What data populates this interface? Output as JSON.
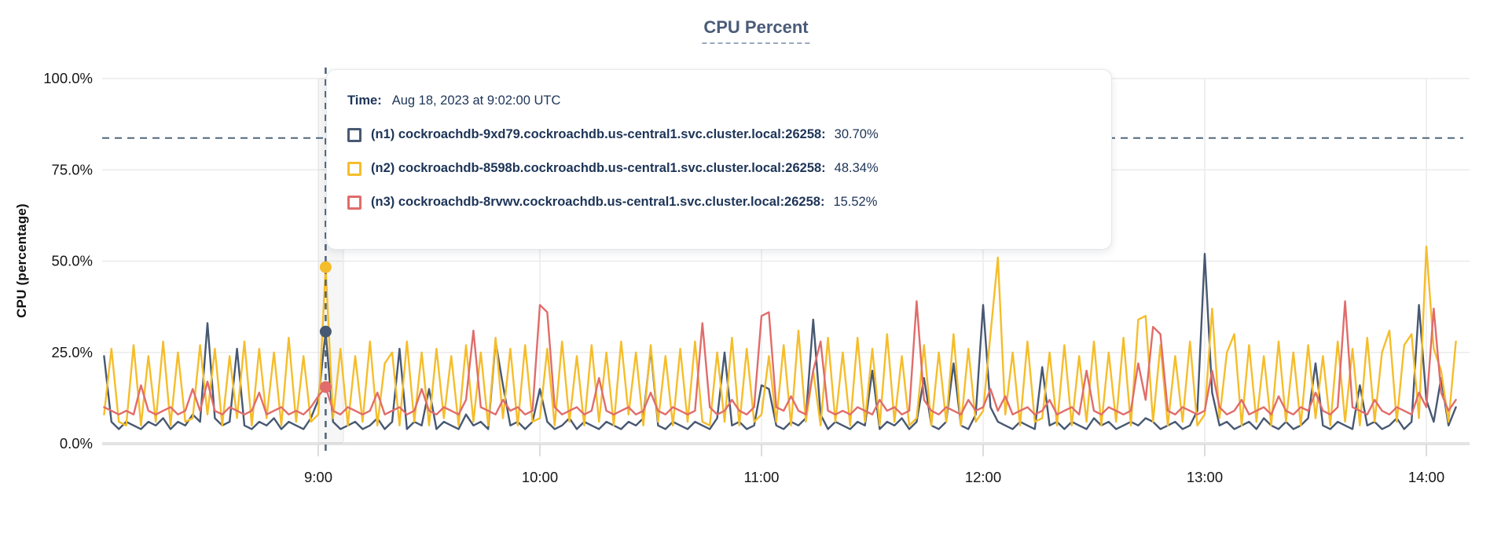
{
  "chart_data": {
    "type": "line",
    "title": "CPU Percent",
    "ylabel": "CPU (percentage)",
    "ylim": [
      0,
      100
    ],
    "grid": true,
    "y_tick_labels": [
      "100.0%",
      "75.0%",
      "50.0%",
      "25.0%",
      "0.0%"
    ],
    "y_tick_values": [
      100,
      75,
      50,
      25,
      0
    ],
    "x_tick_labels": [
      "9:00",
      "10:00",
      "11:00",
      "12:00",
      "13:00",
      "14:00"
    ],
    "x_tick_minutes": [
      540,
      600,
      660,
      720,
      780,
      840
    ],
    "x_start_minutes": 482,
    "x_step_minutes": 2,
    "dashed_hline_value": 83.7,
    "crosshair_color": "#51677a",
    "hover": {
      "index": 30,
      "time": "Aug 18, 2023 at 9:02:00 UTC",
      "values": {
        "n1": 30.7,
        "n2": 48.34,
        "n3": 15.52
      }
    },
    "series": [
      {
        "id": "n1",
        "name": "(n1) cockroachdb-9xd79.cockroachdb.us-central1.svc.cluster.local:26258",
        "color": "#475872",
        "values": [
          24,
          6,
          4,
          6,
          5,
          4,
          6,
          5,
          7,
          4,
          6,
          5,
          8,
          6,
          33,
          7,
          5,
          6,
          26,
          5,
          4,
          6,
          5,
          7,
          4,
          6,
          5,
          4,
          7,
          12,
          30.7,
          6,
          4,
          5,
          6,
          4,
          5,
          7,
          4,
          6,
          26,
          4,
          6,
          5,
          15,
          4,
          6,
          5,
          4,
          8,
          5,
          6,
          4,
          28,
          16,
          5,
          6,
          4,
          6,
          15,
          6,
          4,
          5,
          7,
          4,
          6,
          5,
          4,
          6,
          5,
          4,
          6,
          5,
          7,
          26,
          5,
          4,
          6,
          5,
          4,
          6,
          5,
          4,
          7,
          25,
          5,
          6,
          4,
          5,
          16,
          15,
          5,
          4,
          6,
          5,
          7,
          34,
          8,
          4,
          6,
          5,
          4,
          6,
          5,
          20,
          4,
          6,
          5,
          7,
          4,
          6,
          18,
          5,
          4,
          6,
          22,
          5,
          4,
          8,
          38,
          10,
          6,
          5,
          4,
          6,
          5,
          4,
          21,
          5,
          6,
          4,
          6,
          5,
          4,
          7,
          5,
          6,
          4,
          5,
          6,
          5,
          7,
          6,
          4,
          5,
          6,
          4,
          5,
          9,
          52,
          14,
          5,
          6,
          4,
          5,
          6,
          4,
          7,
          5,
          4,
          6,
          4,
          5,
          7,
          22,
          5,
          4,
          6,
          5,
          4,
          16,
          5,
          6,
          4,
          5,
          7,
          4,
          6,
          38,
          12,
          6,
          18,
          5,
          10
        ]
      },
      {
        "id": "n2",
        "name": "(n2) cockroachdb-8598b.cockroachdb.us-central1.svc.cluster.local:26258",
        "color": "#f5bd2b",
        "values": [
          8,
          26,
          6,
          5,
          27,
          5,
          24,
          6,
          28,
          5,
          25,
          6,
          7,
          27,
          8,
          26,
          5,
          24,
          7,
          28,
          5,
          26,
          7,
          25,
          5,
          29,
          6,
          24,
          6,
          8,
          48.34,
          7,
          26,
          5,
          24,
          6,
          28,
          5,
          22,
          25,
          5,
          28,
          6,
          25,
          5,
          26,
          7,
          24,
          5,
          27,
          6,
          25,
          5,
          29,
          7,
          26,
          5,
          27,
          6,
          7,
          26,
          5,
          28,
          6,
          24,
          5,
          27,
          6,
          25,
          5,
          28,
          8,
          25,
          5,
          27,
          6,
          24,
          5,
          26,
          6,
          28,
          6,
          5,
          25,
          6,
          29,
          5,
          26,
          6,
          8,
          24,
          6,
          27,
          5,
          31,
          6,
          20,
          5,
          29,
          6,
          25,
          5,
          29,
          6,
          26,
          5,
          30,
          6,
          24,
          5,
          7,
          27,
          5,
          25,
          6,
          30,
          5,
          26,
          6,
          9,
          30,
          51,
          8,
          25,
          5,
          28,
          6,
          7,
          25,
          5,
          27,
          5,
          24,
          6,
          28,
          5,
          25,
          6,
          29,
          5,
          34,
          35,
          6,
          27,
          5,
          24,
          6,
          28,
          5,
          8,
          37,
          7,
          25,
          30,
          5,
          27,
          6,
          24,
          5,
          28,
          6,
          25,
          5,
          27,
          7,
          24,
          5,
          28,
          6,
          26,
          5,
          29,
          6,
          25,
          31,
          6,
          27,
          30,
          7,
          54,
          26,
          20,
          6,
          28
        ]
      },
      {
        "id": "n3",
        "name": "(n3) cockroachdb-8rvwv.cockroachdb.us-central1.svc.cluster.local:26258",
        "color": "#e06c6b",
        "values": [
          10,
          9,
          8,
          9,
          8,
          16,
          9,
          8,
          9,
          10,
          8,
          9,
          15,
          9,
          17,
          9,
          8,
          10,
          9,
          8,
          9,
          14,
          8,
          9,
          10,
          8,
          9,
          8,
          10,
          13,
          15.52,
          9,
          8,
          10,
          9,
          8,
          9,
          14,
          8,
          9,
          10,
          8,
          9,
          15,
          9,
          8,
          10,
          9,
          8,
          12,
          31,
          10,
          9,
          8,
          12,
          9,
          10,
          8,
          9,
          38,
          36,
          10,
          8,
          9,
          10,
          8,
          9,
          18,
          9,
          8,
          9,
          10,
          8,
          9,
          14,
          9,
          8,
          10,
          9,
          8,
          9,
          33,
          10,
          8,
          9,
          12,
          9,
          8,
          10,
          35,
          36,
          10,
          9,
          13,
          9,
          8,
          20,
          28,
          9,
          8,
          9,
          8,
          10,
          9,
          8,
          12,
          9,
          10,
          8,
          9,
          39,
          12,
          9,
          8,
          10,
          9,
          8,
          12,
          9,
          10,
          15,
          9,
          13,
          8,
          9,
          10,
          8,
          9,
          12,
          8,
          9,
          10,
          8,
          20,
          9,
          8,
          10,
          9,
          8,
          9,
          22,
          12,
          32,
          30,
          9,
          8,
          10,
          9,
          8,
          9,
          20,
          10,
          8,
          9,
          12,
          8,
          9,
          10,
          8,
          13,
          9,
          8,
          10,
          9,
          14,
          9,
          8,
          10,
          39,
          10,
          9,
          8,
          12,
          9,
          8,
          10,
          9,
          8,
          14,
          10,
          37,
          14,
          9,
          12
        ]
      }
    ]
  },
  "tooltip": {
    "time_label": "Time:",
    "time_value": "Aug 18, 2023 at 9:02:00 UTC",
    "rows": [
      {
        "id": "n1",
        "label": "(n1) cockroachdb-9xd79.cockroachdb.us-central1.svc.cluster.local:26258:",
        "value": "30.70%",
        "color": "#475872"
      },
      {
        "id": "n2",
        "label": "(n2) cockroachdb-8598b.cockroachdb.us-central1.svc.cluster.local:26258:",
        "value": "48.34%",
        "color": "#f5bd2b"
      },
      {
        "id": "n3",
        "label": "(n3) cockroachdb-8rvwv.cockroachdb.us-central1.svc.cluster.local:26258:",
        "value": "15.52%",
        "color": "#e06c6b"
      }
    ]
  }
}
